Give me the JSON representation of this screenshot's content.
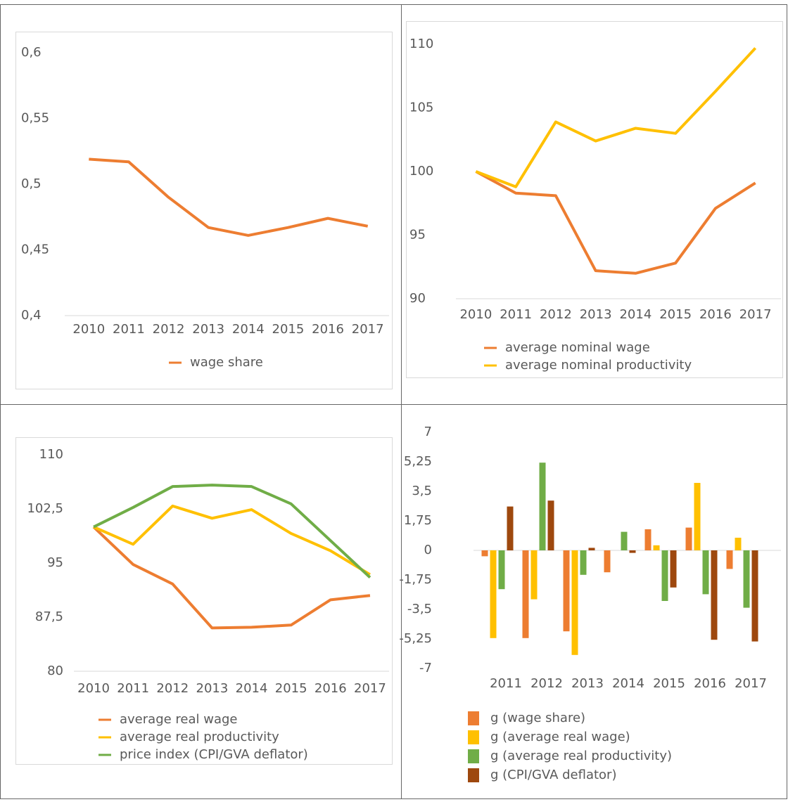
{
  "chart_data": [
    {
      "type": "line",
      "categories": [
        "2010",
        "2011",
        "2012",
        "2013",
        "2014",
        "2015",
        "2016",
        "2017"
      ],
      "series": [
        {
          "name": "wage share",
          "color": "#ED7D31",
          "values": [
            0.519,
            0.517,
            0.49,
            0.467,
            0.461,
            0.467,
            0.474,
            0.468
          ]
        }
      ],
      "ylim": [
        0.4,
        0.6
      ],
      "yticks": [
        {
          "value": 0.4,
          "label": "0,4"
        },
        {
          "value": 0.45,
          "label": "0,45"
        },
        {
          "value": 0.5,
          "label": "0,5"
        },
        {
          "value": 0.55,
          "label": "0,55"
        },
        {
          "value": 0.6,
          "label": "0,6"
        }
      ],
      "legend": "bottom",
      "grid": false
    },
    {
      "type": "line",
      "categories": [
        "2010",
        "2011",
        "2012",
        "2013",
        "2014",
        "2015",
        "2016",
        "2017"
      ],
      "series": [
        {
          "name": "average nominal wage",
          "color": "#ED7D31",
          "values": [
            100,
            98.3,
            98.1,
            92.2,
            92.0,
            92.8,
            97.1,
            99.1
          ]
        },
        {
          "name": "average nominal productivity",
          "color": "#FFC000",
          "values": [
            100,
            98.8,
            103.9,
            102.4,
            103.4,
            103.0,
            106.3,
            109.7
          ]
        }
      ],
      "ylim": [
        90,
        110
      ],
      "yticks": [
        90,
        95,
        100,
        105,
        110
      ],
      "legend": "bottom",
      "grid": false
    },
    {
      "type": "line",
      "categories": [
        "2010",
        "2011",
        "2012",
        "2013",
        "2014",
        "2015",
        "2016",
        "2017"
      ],
      "series": [
        {
          "name": "average real wage",
          "color": "#ED7D31",
          "values": [
            100,
            94.8,
            92.1,
            86.0,
            86.1,
            86.4,
            89.9,
            90.5
          ]
        },
        {
          "name": "average real productivity",
          "color": "#FFC000",
          "values": [
            100,
            97.6,
            102.9,
            101.2,
            102.4,
            99.1,
            96.7,
            93.4
          ]
        },
        {
          "name": "price index (CPI/GVA deflator)",
          "color": "#70AD47",
          "values": [
            100,
            102.7,
            105.6,
            105.8,
            105.6,
            103.2,
            98.1,
            93.0
          ]
        }
      ],
      "ylim": [
        80,
        110
      ],
      "yticks": [
        80,
        {
          "value": 87.5,
          "label": "87,5"
        },
        95,
        {
          "value": 102.5,
          "label": "102,5"
        },
        110
      ],
      "legend": "bottom",
      "grid": false
    },
    {
      "type": "bar",
      "categories": [
        "2011",
        "2012",
        "2013",
        "2014",
        "2015",
        "2016",
        "2017"
      ],
      "series": [
        {
          "name": "g (wage share)",
          "color": "#ED7D31",
          "values": [
            -0.35,
            -5.2,
            -4.8,
            -1.3,
            1.25,
            1.35,
            -1.1
          ]
        },
        {
          "name": "g (average real wage)",
          "color": "#FFC000",
          "values": [
            -5.2,
            -2.9,
            -6.2,
            0,
            0.3,
            4.0,
            0.75
          ]
        },
        {
          "name": "g (average real productivity)",
          "color": "#70AD47",
          "values": [
            -2.3,
            5.2,
            -1.45,
            1.1,
            -3.0,
            -2.6,
            -3.4
          ]
        },
        {
          "name": "g (CPI/GVA deflator)",
          "color": "#9E480E",
          "values": [
            2.6,
            2.95,
            0.15,
            -0.15,
            -2.2,
            -5.3,
            -5.4
          ]
        }
      ],
      "ylim": [
        -7,
        7
      ],
      "yticks": [
        -7,
        {
          "value": -5.25,
          "label": "-5,25"
        },
        {
          "value": -3.5,
          "label": "-3,5"
        },
        {
          "value": -1.75,
          "label": "-1,75"
        },
        0,
        {
          "value": 1.75,
          "label": "1,75"
        },
        {
          "value": 3.5,
          "label": "3,5"
        },
        {
          "value": 5.25,
          "label": "5,25"
        },
        7
      ],
      "legend": "bottom",
      "grid": false
    }
  ]
}
